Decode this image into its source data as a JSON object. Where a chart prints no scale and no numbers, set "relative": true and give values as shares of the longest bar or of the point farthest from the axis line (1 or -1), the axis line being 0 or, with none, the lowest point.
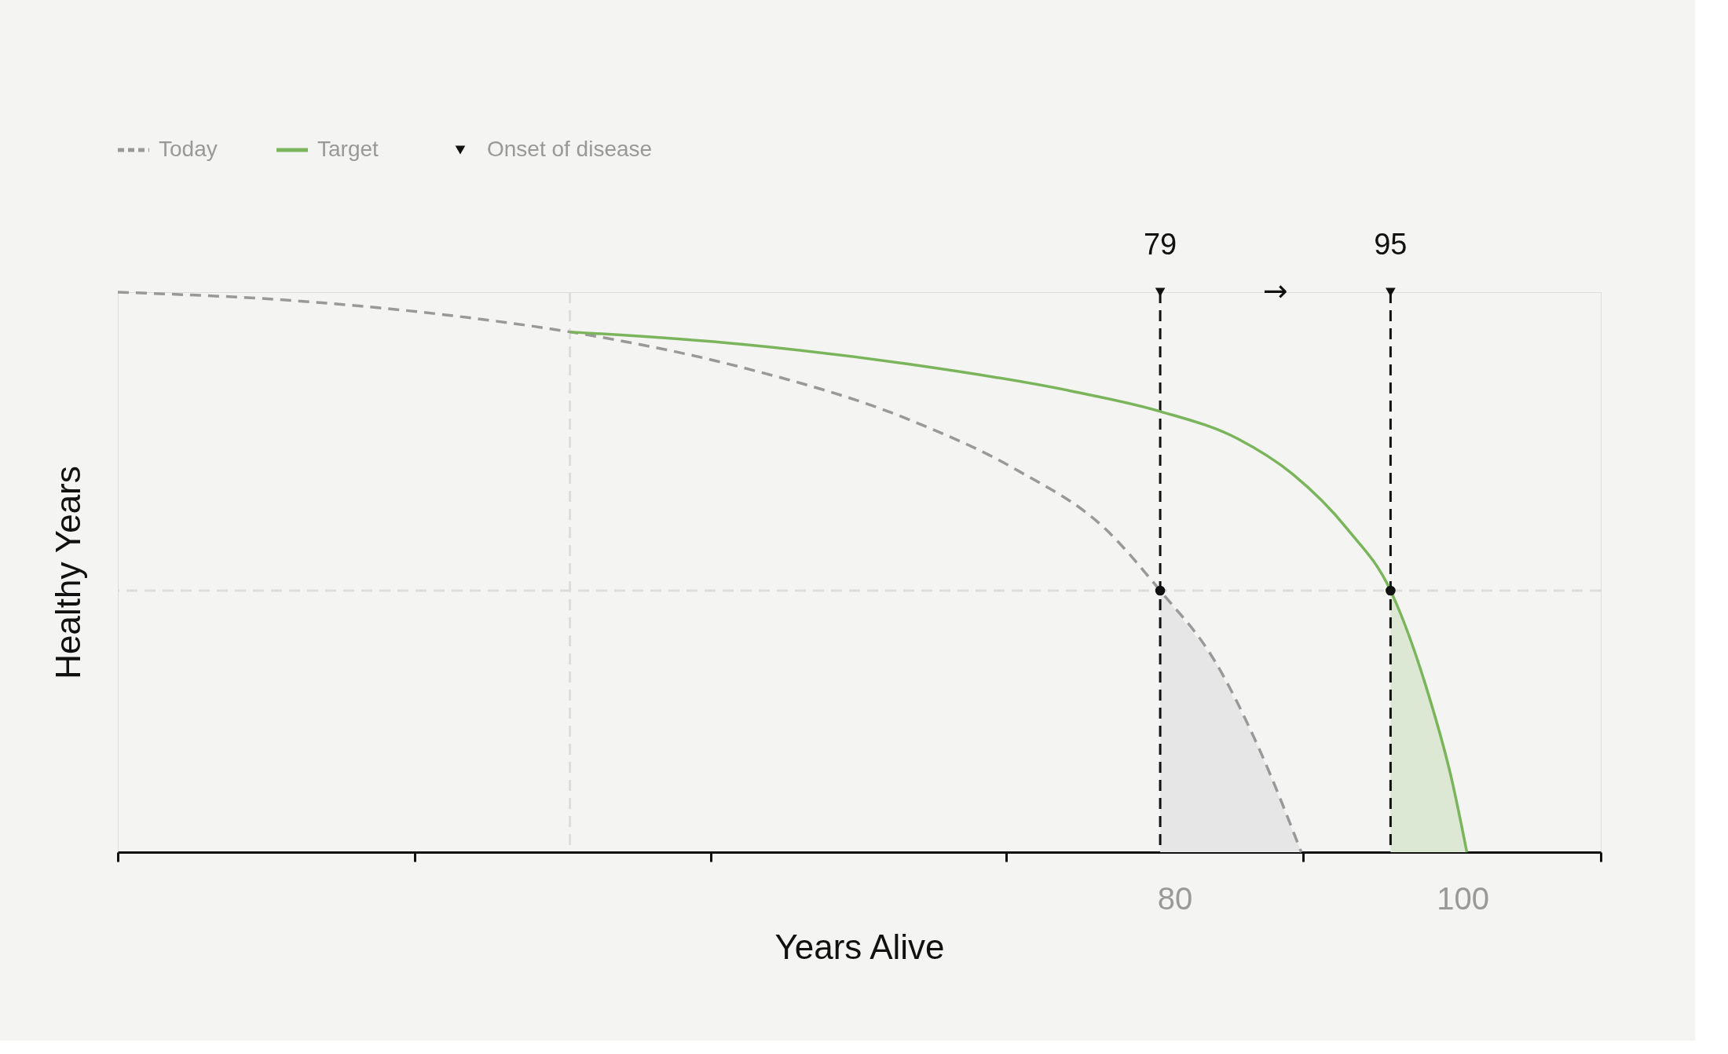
{
  "chart_data": {
    "type": "line",
    "relative": true,
    "xlabel": "Years Alive",
    "ylabel": "Healthy Years",
    "xlim": [
      6.6,
      109.6
    ],
    "xticks": [
      {
        "value": 6.6,
        "label": null
      },
      {
        "value": 27.2,
        "label": null
      },
      {
        "value": 47.8,
        "label": null
      },
      {
        "value": 68.3,
        "label": null
      },
      80,
      {
        "value": 88.9,
        "label": null
      },
      100,
      {
        "value": 109.6,
        "label": null
      }
    ],
    "series": [
      {
        "type": "area",
        "color": "#e6e6e6",
        "x": [
          79,
          82.8,
          85.9,
          88.8
        ],
        "values": [
          0.467,
          0.341,
          0.183,
          0
        ]
      },
      {
        "type": "area",
        "color": "#dde8d4",
        "x": [
          95,
          97.4,
          99.3,
          100.3
        ],
        "values": [
          0.467,
          0.301,
          0.124,
          0
        ]
      },
      {
        "name": "Today",
        "color": "#999999",
        "line_style": "dashed",
        "marker": "none",
        "x": [
          6.6,
          19.3,
          30.8,
          38.0,
          49.9,
          61.4,
          69.0,
          75.2,
          79,
          82.8,
          85.9,
          88.8
        ],
        "values": [
          1.0,
          0.984,
          0.955,
          0.929,
          0.866,
          0.774,
          0.683,
          0.577,
          0.467,
          0.341,
          0.183,
          0
        ]
      },
      {
        "name": "Target",
        "color": "#7ab55c",
        "line_style": "solid",
        "marker": "none",
        "x": [
          38.0,
          49.9,
          61.4,
          72.9,
          79,
          84.4,
          88.2,
          92.0,
          95,
          97.4,
          99.3,
          100.3
        ],
        "values": [
          0.929,
          0.907,
          0.872,
          0.823,
          0.787,
          0.738,
          0.675,
          0.577,
          0.467,
          0.301,
          0.124,
          0
        ]
      },
      {
        "name": "Onset of disease",
        "type": "scatter",
        "color": "#111111",
        "marker": "triangle",
        "x": [
          79,
          95
        ],
        "values": [
          1.0,
          1.0
        ]
      },
      {
        "type": "scatter",
        "color": "#111111",
        "marker": "circle",
        "x": [
          79,
          95
        ],
        "values": [
          0.467,
          0.467
        ]
      }
    ],
    "ref_lines": [
      {
        "axis": "x",
        "value": 79,
        "label": "79",
        "color": "#111111",
        "line_style": "dashed"
      },
      {
        "axis": "x",
        "value": 95,
        "label": "95",
        "color": "#111111",
        "line_style": "dashed"
      },
      {
        "axis": "x",
        "value": 38.0,
        "label": null,
        "color": "#dddddd",
        "line_style": "dashed"
      },
      {
        "axis": "y",
        "value": 0.467,
        "label": null,
        "color": "#dddddd",
        "line_style": "dashed"
      }
    ],
    "annotations": [
      "→"
    ],
    "legend": "top left",
    "grid": false
  }
}
